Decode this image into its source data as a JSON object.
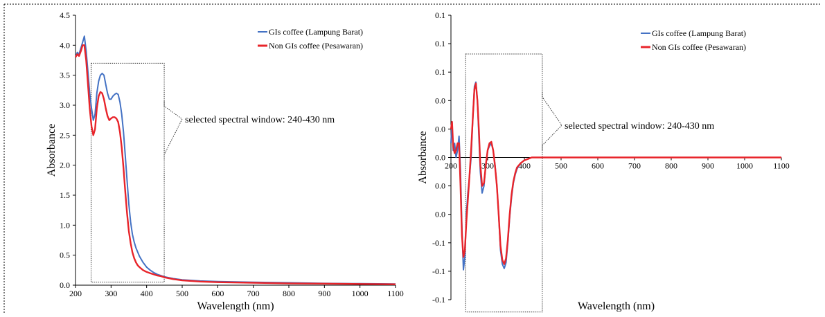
{
  "chart_data": [
    {
      "type": "line",
      "xlabel": "Wavelength (nm)",
      "ylabel": "Absorbance",
      "xlim": [
        200,
        1100
      ],
      "ylim": [
        0,
        4.5
      ],
      "xticks": [
        "200",
        "300",
        "400",
        "500",
        "600",
        "700",
        "800",
        "900",
        "1000",
        "1100"
      ],
      "yticks": [
        "0.0",
        "0.5",
        "1.0",
        "1.5",
        "2.0",
        "2.5",
        "3.0",
        "3.5",
        "4.0",
        "4.5"
      ],
      "legend_position": "top-right",
      "annotation": "selected spectral window: 240-430 nm",
      "window_range": [
        240,
        430
      ],
      "window_ylim": [
        0.05,
        3.7
      ],
      "series": [
        {
          "name": "GIs coffee (Lampung Barat)",
          "color": "#4472c4",
          "x": [
            200,
            205,
            210,
            215,
            220,
            225,
            230,
            235,
            240,
            245,
            250,
            255,
            260,
            265,
            270,
            275,
            280,
            285,
            290,
            295,
            300,
            305,
            310,
            315,
            320,
            325,
            330,
            335,
            340,
            345,
            350,
            355,
            360,
            365,
            370,
            375,
            380,
            390,
            400,
            410,
            420,
            430,
            440,
            450,
            475,
            500,
            550,
            600,
            700,
            800,
            900,
            1000,
            1100
          ],
          "y": [
            3.8,
            3.88,
            3.85,
            3.95,
            4.05,
            4.15,
            3.9,
            3.55,
            3.2,
            2.95,
            2.75,
            2.85,
            3.2,
            3.4,
            3.5,
            3.53,
            3.5,
            3.35,
            3.2,
            3.1,
            3.1,
            3.15,
            3.18,
            3.2,
            3.18,
            3.05,
            2.85,
            2.55,
            2.15,
            1.75,
            1.35,
            1.05,
            0.85,
            0.72,
            0.62,
            0.55,
            0.48,
            0.38,
            0.3,
            0.25,
            0.21,
            0.18,
            0.16,
            0.14,
            0.11,
            0.09,
            0.07,
            0.06,
            0.05,
            0.04,
            0.03,
            0.025,
            0.02
          ]
        },
        {
          "name": "Non GIs coffee (Pesawaran)",
          "color": "#e8242a",
          "x": [
            200,
            205,
            210,
            215,
            220,
            225,
            230,
            235,
            240,
            245,
            250,
            255,
            260,
            265,
            270,
            275,
            280,
            285,
            290,
            295,
            300,
            305,
            310,
            315,
            320,
            325,
            330,
            335,
            340,
            345,
            350,
            355,
            360,
            365,
            370,
            375,
            380,
            390,
            400,
            410,
            420,
            430,
            440,
            450,
            475,
            500,
            550,
            600,
            700,
            800,
            900,
            1000,
            1100
          ],
          "y": [
            3.8,
            3.85,
            3.82,
            3.9,
            4.0,
            4.0,
            3.75,
            3.35,
            2.95,
            2.65,
            2.5,
            2.6,
            2.95,
            3.15,
            3.22,
            3.2,
            3.1,
            2.95,
            2.82,
            2.75,
            2.78,
            2.8,
            2.8,
            2.78,
            2.72,
            2.55,
            2.3,
            1.95,
            1.55,
            1.2,
            0.9,
            0.7,
            0.55,
            0.45,
            0.38,
            0.33,
            0.3,
            0.25,
            0.22,
            0.2,
            0.18,
            0.16,
            0.15,
            0.13,
            0.1,
            0.08,
            0.06,
            0.05,
            0.04,
            0.03,
            0.025,
            0.02,
            0.015
          ]
        }
      ]
    },
    {
      "type": "line",
      "xlabel": "Wavelength (nm)",
      "ylabel": "Absorbance",
      "xlim": [
        200,
        1100
      ],
      "ylim": [
        -0.1,
        0.1
      ],
      "xticks": [
        "200",
        "300",
        "400",
        "500",
        "600",
        "700",
        "800",
        "900",
        "1000",
        "1100"
      ],
      "yticks": [
        "0.1",
        "0.1",
        "0.1",
        "0.0",
        "0.0",
        "0.0",
        "0.0",
        "0.0",
        "-0.1",
        "-0.1",
        "-0.1"
      ],
      "ytick_values": [
        0.1,
        0.08,
        0.06,
        0.04,
        0.02,
        0.0,
        -0.02,
        -0.04,
        -0.06,
        -0.08,
        -0.1
      ],
      "legend_position": "top-right",
      "annotation": "selected spectral window: 240-430 nm",
      "window_range": [
        240,
        430
      ],
      "window_ylim": [
        -0.095,
        0.063
      ],
      "series": [
        {
          "name": "GIs coffee (Lampung Barat)",
          "color": "#4472c4",
          "x": [
            200,
            203,
            206,
            210,
            214,
            218,
            222,
            226,
            230,
            234,
            238,
            242,
            246,
            250,
            255,
            260,
            264,
            268,
            272,
            276,
            280,
            285,
            290,
            295,
            300,
            305,
            310,
            315,
            320,
            325,
            330,
            335,
            340,
            345,
            350,
            355,
            360,
            365,
            370,
            375,
            380,
            390,
            400,
            410,
            420,
            430,
            450,
            500,
            600,
            700,
            800,
            900,
            1000,
            1100
          ],
          "y": [
            0.01,
            0.025,
            0.005,
            0.01,
            0.0,
            0.005,
            0.015,
            -0.01,
            -0.05,
            -0.079,
            -0.07,
            -0.04,
            -0.025,
            -0.015,
            0.0,
            0.03,
            0.05,
            0.053,
            0.04,
            0.015,
            -0.01,
            -0.025,
            -0.02,
            -0.005,
            0.005,
            0.008,
            0.01,
            0.005,
            -0.005,
            -0.02,
            -0.04,
            -0.065,
            -0.075,
            -0.078,
            -0.074,
            -0.06,
            -0.042,
            -0.028,
            -0.018,
            -0.012,
            -0.008,
            -0.004,
            -0.002,
            -0.001,
            0.0,
            0.0,
            0.0,
            0.0,
            0.0,
            0.0,
            0.0,
            0.0,
            0.0,
            0.0
          ]
        },
        {
          "name": "Non GIs coffee (Pesawaran)",
          "color": "#e8242a",
          "x": [
            200,
            203,
            206,
            210,
            214,
            218,
            222,
            226,
            230,
            234,
            238,
            242,
            246,
            250,
            255,
            260,
            264,
            268,
            272,
            276,
            280,
            285,
            290,
            295,
            300,
            305,
            310,
            315,
            320,
            325,
            330,
            335,
            340,
            345,
            350,
            355,
            360,
            365,
            370,
            375,
            380,
            390,
            400,
            410,
            420,
            430,
            450,
            500,
            600,
            700,
            800,
            900,
            1000,
            1100
          ],
          "y": [
            0.02,
            0.025,
            0.008,
            0.003,
            0.005,
            0.01,
            0.01,
            -0.02,
            -0.055,
            -0.07,
            -0.065,
            -0.045,
            -0.03,
            -0.015,
            0.005,
            0.03,
            0.048,
            0.052,
            0.04,
            0.02,
            -0.005,
            -0.02,
            -0.018,
            -0.005,
            0.005,
            0.01,
            0.011,
            0.005,
            -0.006,
            -0.02,
            -0.04,
            -0.062,
            -0.072,
            -0.075,
            -0.071,
            -0.058,
            -0.04,
            -0.026,
            -0.017,
            -0.011,
            -0.007,
            -0.004,
            -0.002,
            -0.001,
            0.0,
            0.0,
            0.0,
            0.0,
            0.0,
            0.0,
            0.0,
            0.0,
            0.0,
            0.0
          ]
        }
      ]
    }
  ]
}
